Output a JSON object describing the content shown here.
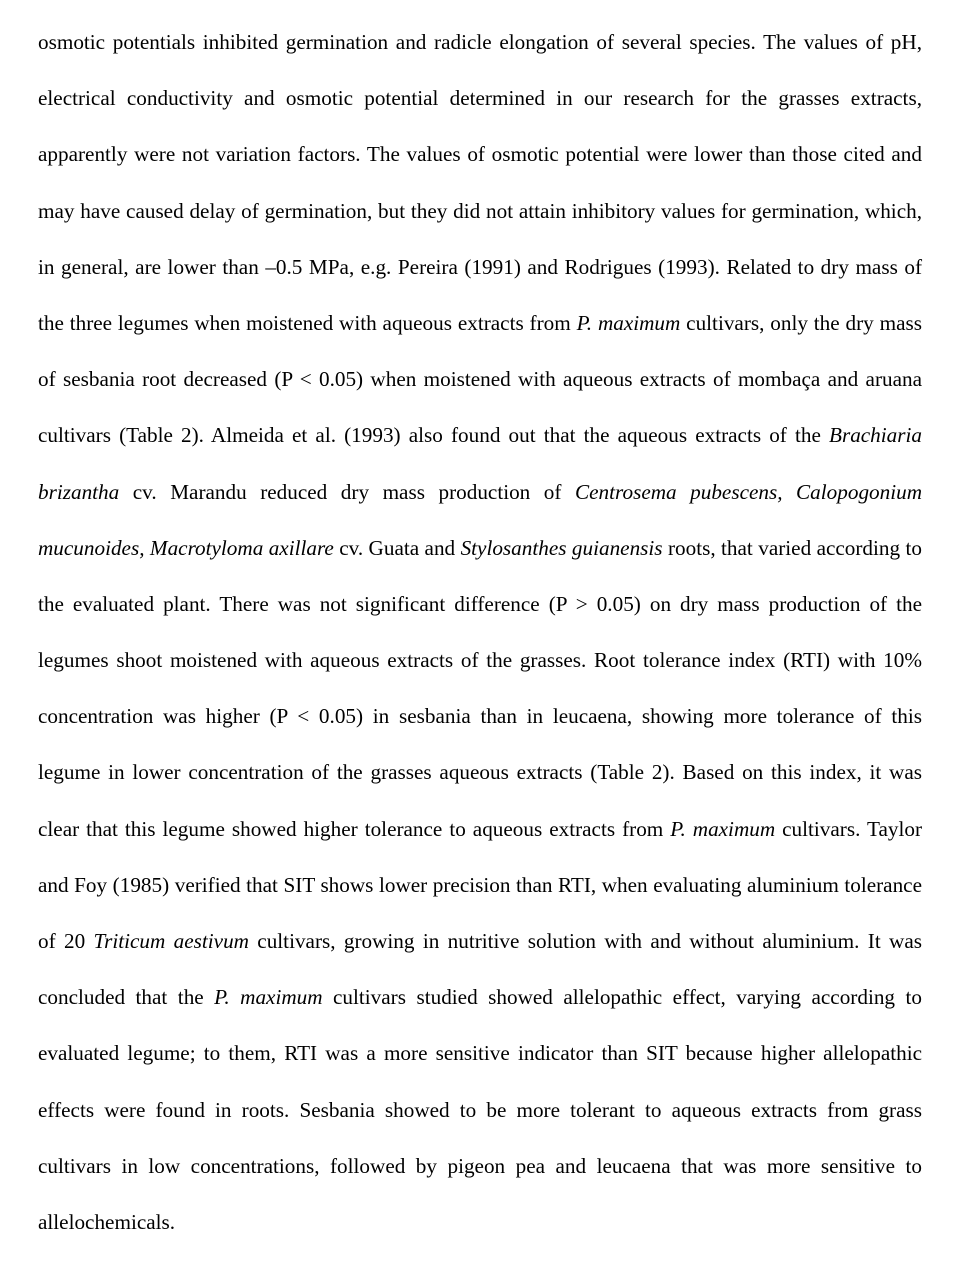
{
  "document": {
    "font_family": "Times New Roman",
    "font_size_pt": 12,
    "line_spacing": "double",
    "text_align": "justify",
    "text_color": "#000000",
    "background_color": "#ffffff"
  },
  "paragraph": {
    "t01": "osmotic potentials inhibited germination and radicle elongation of several species. The values of pH, electrical conductivity and osmotic potential determined in our research for the grasses extracts, apparently were not variation factors. The values of osmotic potential were lower than those cited and may have caused delay of germination, but they did not attain inhibitory values for germination, which, in general, are lower than –0.5 MPa, e.g. Pereira (1991) and Rodrigues (1993). Related to dry mass of the three legumes when moistened with aqueous extracts from ",
    "i01": "P. maximum",
    "t02": " cultivars, only the dry mass of sesbania root decreased (P < 0.05) when moistened with aqueous extracts of mombaça and aruana cultivars (Table 2). Almeida et al. (1993) also found out that the aqueous extracts of the ",
    "i02": "Brachiaria brizantha",
    "t03": " cv. Marandu reduced dry mass production of ",
    "i03": "Centrosema pubescens, Calopogonium mucunoides, Macrotyloma axillare",
    "t04": " cv. Guata and ",
    "i04": "Stylosanthes guianensis",
    "t05": " roots, that varied according to the evaluated plant. There was not significant difference (P > 0.05) on dry mass production of the legumes shoot moistened with aqueous extracts of the grasses. Root tolerance index (RTI) with 10% concentration was higher (P < 0.05) in sesbania than in leucaena, showing more tolerance of this legume in lower concentration of the grasses aqueous extracts (Table 2). Based on this index, it was clear that this legume showed higher tolerance to aqueous extracts from ",
    "i05": "P. maximum",
    "t06": " cultivars. Taylor and Foy (1985) verified that SIT shows lower precision than RTI, when evaluating aluminium tolerance of 20 ",
    "i06": "Triticum aestivum",
    "t07": " cultivars, growing in nutritive solution with and without aluminium. It was concluded that the ",
    "i07": "P. maximum",
    "t08": " cultivars studied showed allelopathic effect, varying according to evaluated legume; to them, RTI was a more sensitive indicator than SIT because higher allelopathic effects were found in roots. Sesbania showed to be more tolerant to aqueous extracts from grass cultivars in low concentrations, followed by pigeon pea and leucaena that was more sensitive to allelochemicals."
  }
}
